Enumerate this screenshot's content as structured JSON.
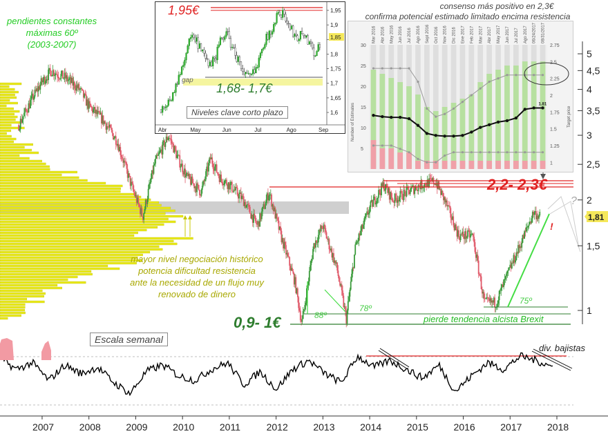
{
  "chart_data": [
    {
      "type": "candlestick",
      "title": "",
      "x_tick_labels": [
        "2007",
        "2008",
        "2009",
        "2010",
        "2011",
        "2012",
        "2013",
        "2014",
        "2015",
        "2016",
        "2017",
        "2018"
      ],
      "y_tick_labels": [
        "5",
        "4,5",
        "4",
        "3,5",
        "3",
        "2,5",
        "2",
        "1,5",
        "1"
      ],
      "y_scale": "log",
      "last_price_label": "1,81",
      "approx_weekly_close": [
        [
          2006.5,
          3.2
        ],
        [
          2006.8,
          3.8
        ],
        [
          2007.0,
          4.2
        ],
        [
          2007.2,
          4.5
        ],
        [
          2007.5,
          4.3
        ],
        [
          2007.8,
          4.0
        ],
        [
          2008.0,
          3.6
        ],
        [
          2008.3,
          3.3
        ],
        [
          2008.6,
          2.9
        ],
        [
          2008.9,
          2.2
        ],
        [
          2009.15,
          1.8
        ],
        [
          2009.4,
          2.5
        ],
        [
          2009.7,
          3.0
        ],
        [
          2009.9,
          2.6
        ],
        [
          2010.1,
          2.3
        ],
        [
          2010.4,
          2.1
        ],
        [
          2010.6,
          2.6
        ],
        [
          2010.8,
          2.3
        ],
        [
          2011.0,
          2.2
        ],
        [
          2011.3,
          2.0
        ],
        [
          2011.6,
          1.7
        ],
        [
          2011.85,
          2.1
        ],
        [
          2012.1,
          1.6
        ],
        [
          2012.4,
          1.2
        ],
        [
          2012.55,
          0.92
        ],
        [
          2012.8,
          1.5
        ],
        [
          2013.0,
          1.7
        ],
        [
          2013.3,
          1.3
        ],
        [
          2013.5,
          0.95
        ],
        [
          2013.7,
          1.5
        ],
        [
          2014.0,
          1.9
        ],
        [
          2014.3,
          2.2
        ],
        [
          2014.5,
          2.0
        ],
        [
          2014.8,
          2.1
        ],
        [
          2015.1,
          2.2
        ],
        [
          2015.4,
          2.25
        ],
        [
          2015.6,
          2.0
        ],
        [
          2015.9,
          1.6
        ],
        [
          2016.2,
          1.6
        ],
        [
          2016.45,
          1.05
        ],
        [
          2016.7,
          1.05
        ],
        [
          2017.0,
          1.3
        ],
        [
          2017.3,
          1.6
        ],
        [
          2017.5,
          1.85
        ],
        [
          2017.65,
          1.8
        ]
      ]
    },
    {
      "type": "line",
      "title": "",
      "label": "Escala semanal",
      "series": [
        {
          "values": [
            0.8,
            0.3,
            0.6,
            -0.2,
            0.5,
            0.1,
            0.4,
            -0.3,
            -0.8,
            0.2,
            0.5,
            0.0,
            -0.2,
            0.3,
            0.6,
            -0.4,
            0.2,
            -0.6,
            0.3,
            0.7,
            0.1,
            -0.3,
            0.9,
            0.4,
            0.7,
            0.3,
            -0.1,
            0.5,
            -0.7,
            0.0,
            0.6,
            0.3,
            0.9,
            0.7,
            0.4
          ]
        }
      ]
    },
    {
      "type": "line",
      "title": "",
      "x_tick_labels": [
        "Abr",
        "May",
        "Jun",
        "Jul",
        "Ago",
        "Sep"
      ],
      "y_tick_labels": [
        "1,95",
        "1,9",
        "1,85",
        "1,8",
        "1,75",
        "1,7",
        "1,65",
        "1,6"
      ],
      "last_value_label": "1,85",
      "approx_daily_close": [
        1.61,
        1.63,
        1.66,
        1.72,
        1.79,
        1.86,
        1.84,
        1.8,
        1.76,
        1.78,
        1.84,
        1.88,
        1.82,
        1.78,
        1.73,
        1.72,
        1.75,
        1.83,
        1.86,
        1.9,
        1.95,
        1.92,
        1.88,
        1.86,
        1.87,
        1.84,
        1.8,
        1.85
      ]
    },
    {
      "type": "bar+line",
      "title": "",
      "ylabel_left": "Number of Estimates",
      "ylabel_right": "Target price",
      "categories": [
        "Mar 2016",
        "Abr 2016",
        "May 2016",
        "Jun 2016",
        "Jul 2016",
        "Ago 2016",
        "Sept 2016",
        "Oct 2016",
        "Nov 2016",
        "Dic 2016",
        "Ene 2017",
        "Feb 2017",
        "Mar 2017",
        "Abr 2017",
        "May 2017",
        "Jun 2017",
        "Jul 2017",
        "Ago 2017",
        "06/24/2017",
        "08/31/2017"
      ],
      "y_tick_labels_left": [
        "5",
        "10",
        "15",
        "20",
        "25",
        "30"
      ],
      "y_tick_labels_right": [
        "1",
        "1.25",
        "1.5",
        "1.75",
        "2",
        "2.25",
        "2.5",
        "2.75"
      ],
      "series": [
        {
          "values": [
            24,
            23,
            22,
            21,
            20,
            18,
            15,
            14,
            15,
            16,
            17,
            18,
            21,
            23,
            24,
            25,
            25,
            26,
            26,
            26
          ]
        },
        {
          "values": [
            7,
            5,
            5,
            4,
            4,
            2,
            2,
            2,
            2,
            2,
            2,
            2,
            2,
            2,
            2,
            2,
            2,
            2,
            2,
            2
          ]
        },
        {
          "values": [
            1.7,
            1.68,
            1.67,
            1.67,
            1.65,
            1.55,
            1.43,
            1.4,
            1.39,
            1.39,
            1.4,
            1.45,
            1.52,
            1.56,
            1.6,
            1.62,
            1.66,
            1.79,
            1.81,
            1.81
          ]
        },
        {
          "values": [
            2.4,
            2.4,
            2.4,
            2.4,
            2.4,
            2.2,
            1.8,
            1.68,
            1.72,
            1.8,
            1.9,
            2.0,
            2.1,
            2.2,
            2.25,
            2.3,
            2.3,
            2.3,
            2.3,
            2.3
          ]
        },
        {
          "values": [
            1.25,
            1.25,
            1.25,
            1.2,
            1.15,
            1.05,
            1.0,
            1.0,
            1.1,
            1.15,
            1.15,
            1.15,
            1.15,
            1.15,
            1.15,
            1.15,
            1.15,
            1.15,
            1.15,
            1.15
          ]
        }
      ],
      "last_value_label": "1.81"
    }
  ],
  "annotations": {
    "top_left": "pendientes constantes\nmáximas 60º\n(2003-2007)",
    "consenso_title": "consenso más positivo en 2,3€",
    "consenso_sub": "confirma potencial estimado limitado encima resistencia",
    "resistance": "2,2- 2,3€",
    "support": "0,9- 1€",
    "hist_level": "mayor nivel negociación histórico\npotencia dificultad resistencia\nante la necesidad de un flujo muy\nrenovado de dinero",
    "angle88": "88º",
    "angle78": "78º",
    "angle75": "75º",
    "brexit": "pierde tendencia alcista Brexit",
    "div": "div. bajistas",
    "escala": "Escala semanal",
    "question": "?",
    "exclaim": "!",
    "inset_top": "1,95€",
    "inset_gap": "gap",
    "inset_level": "1,68- 1,7€",
    "inset_box": "Niveles clave corto plazo"
  },
  "colors": {
    "up": "#3a9a3a",
    "down": "#e05a6a",
    "vol": "#e8e81a",
    "resist": "#e02020",
    "support": "#2e7d2e",
    "trendline": "#44dd44",
    "osc": "#000000"
  }
}
